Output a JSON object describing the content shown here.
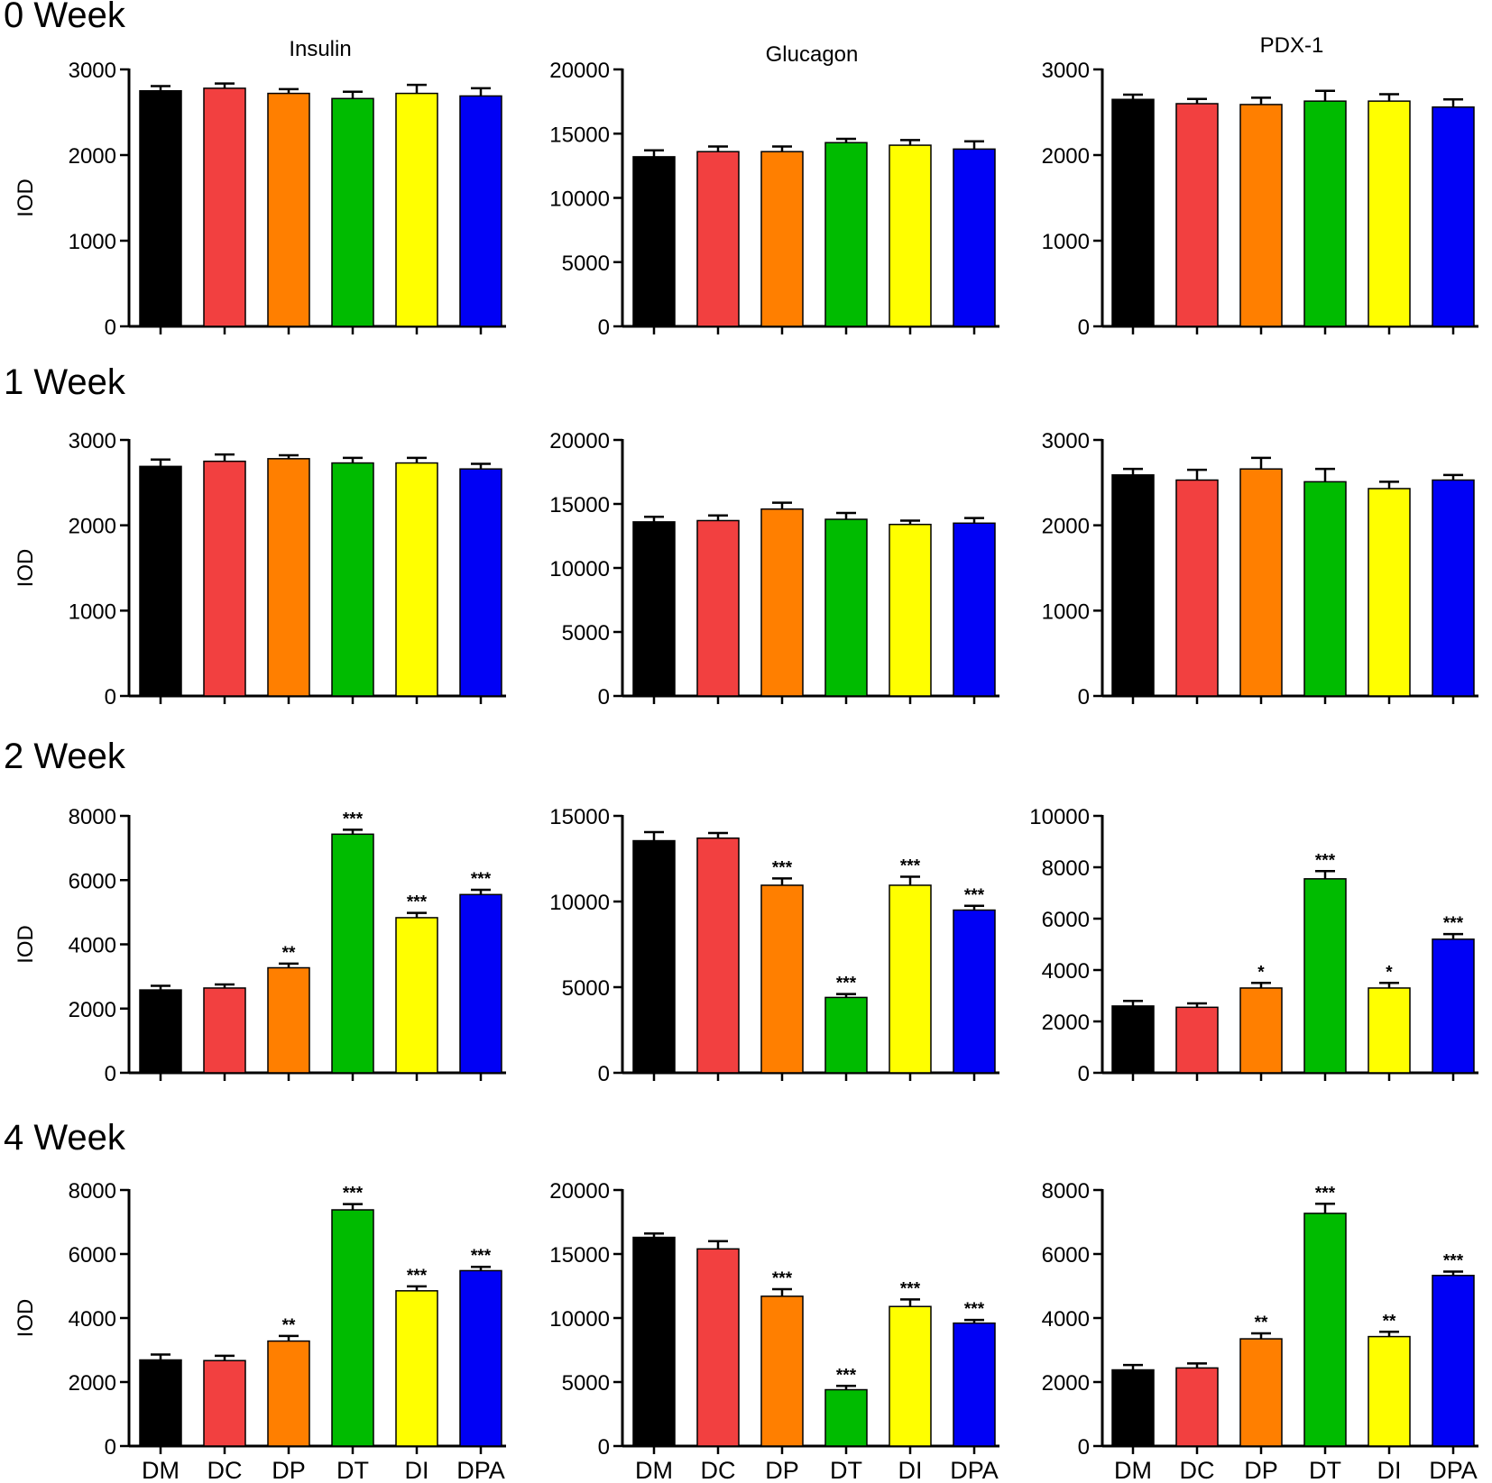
{
  "colors": {
    "DM": "#000000",
    "DC": "#f24040",
    "DP": "#ff7f00",
    "DT": "#00bb00",
    "DI": "#ffff00",
    "DPA": "#0000f5"
  },
  "columns": [
    "Insulin",
    "Glucagon",
    "PDX-1"
  ],
  "rows": [
    "0 Week",
    "1 Week",
    "2 Week",
    "4 Week"
  ],
  "ylabel": "IOD",
  "categories": [
    "DM",
    "DC",
    "DP",
    "DT",
    "DI",
    "DPA"
  ],
  "chart_data": [
    {
      "type": "bar",
      "row": "0 Week",
      "title": "Insulin",
      "ylabel": "IOD",
      "ylim": [
        0,
        3000
      ],
      "yticks": [
        0,
        1000,
        2000,
        3000
      ],
      "categories": [
        "DM",
        "DC",
        "DP",
        "DT",
        "DI",
        "DPA"
      ],
      "values": [
        2750,
        2780,
        2720,
        2660,
        2720,
        2690
      ],
      "errors": [
        55,
        55,
        50,
        80,
        100,
        90
      ],
      "significance": [
        "",
        "",
        "",
        "",
        "",
        ""
      ]
    },
    {
      "type": "bar",
      "row": "0 Week",
      "title": "Glucagon",
      "ylabel": "",
      "ylim": [
        0,
        20000
      ],
      "yticks": [
        0,
        5000,
        10000,
        15000,
        20000
      ],
      "categories": [
        "DM",
        "DC",
        "DP",
        "DT",
        "DI",
        "DPA"
      ],
      "values": [
        13200,
        13600,
        13600,
        14300,
        14100,
        13800
      ],
      "errors": [
        500,
        400,
        400,
        300,
        400,
        600
      ],
      "significance": [
        "",
        "",
        "",
        "",
        "",
        ""
      ]
    },
    {
      "type": "bar",
      "row": "0 Week",
      "title": "PDX-1",
      "ylabel": "",
      "ylim": [
        0,
        3000
      ],
      "yticks": [
        0,
        1000,
        2000,
        3000
      ],
      "categories": [
        "DM",
        "DC",
        "DP",
        "DT",
        "DI",
        "DPA"
      ],
      "values": [
        2650,
        2600,
        2590,
        2630,
        2630,
        2560
      ],
      "errors": [
        55,
        55,
        80,
        120,
        80,
        90
      ],
      "significance": [
        "",
        "",
        "",
        "",
        "",
        ""
      ]
    },
    {
      "type": "bar",
      "row": "1 Week",
      "title": "",
      "ylabel": "IOD",
      "ylim": [
        0,
        3000
      ],
      "yticks": [
        0,
        1000,
        2000,
        3000
      ],
      "categories": [
        "DM",
        "DC",
        "DP",
        "DT",
        "DI",
        "DPA"
      ],
      "values": [
        2690,
        2750,
        2780,
        2730,
        2730,
        2660
      ],
      "errors": [
        80,
        80,
        40,
        60,
        60,
        60
      ],
      "significance": [
        "",
        "",
        "",
        "",
        "",
        ""
      ]
    },
    {
      "type": "bar",
      "row": "1 Week",
      "title": "",
      "ylabel": "",
      "ylim": [
        0,
        20000
      ],
      "yticks": [
        0,
        5000,
        10000,
        15000,
        20000
      ],
      "categories": [
        "DM",
        "DC",
        "DP",
        "DT",
        "DI",
        "DPA"
      ],
      "values": [
        13600,
        13700,
        14600,
        13800,
        13400,
        13500
      ],
      "errors": [
        400,
        400,
        500,
        500,
        300,
        400
      ],
      "significance": [
        "",
        "",
        "",
        "",
        "",
        ""
      ]
    },
    {
      "type": "bar",
      "row": "1 Week",
      "title": "",
      "ylabel": "",
      "ylim": [
        0,
        3000
      ],
      "yticks": [
        0,
        1000,
        2000,
        3000
      ],
      "categories": [
        "DM",
        "DC",
        "DP",
        "DT",
        "DI",
        "DPA"
      ],
      "values": [
        2590,
        2530,
        2660,
        2510,
        2430,
        2530
      ],
      "errors": [
        70,
        120,
        130,
        150,
        80,
        60
      ],
      "significance": [
        "",
        "",
        "",
        "",
        "",
        ""
      ]
    },
    {
      "type": "bar",
      "row": "2 Week",
      "title": "",
      "ylabel": "IOD",
      "ylim": [
        0,
        8000
      ],
      "yticks": [
        0,
        2000,
        4000,
        6000,
        8000
      ],
      "categories": [
        "DM",
        "DC",
        "DP",
        "DT",
        "DI",
        "DPA"
      ],
      "values": [
        2580,
        2640,
        3270,
        7430,
        4830,
        5550
      ],
      "errors": [
        130,
        110,
        130,
        140,
        150,
        150
      ],
      "significance": [
        "",
        "",
        "**",
        "***",
        "***",
        "***"
      ]
    },
    {
      "type": "bar",
      "row": "2 Week",
      "title": "",
      "ylabel": "",
      "ylim": [
        0,
        15000
      ],
      "yticks": [
        0,
        5000,
        10000,
        15000
      ],
      "categories": [
        "DM",
        "DC",
        "DP",
        "DT",
        "DI",
        "DPA"
      ],
      "values": [
        13550,
        13700,
        10950,
        4400,
        10950,
        9500
      ],
      "errors": [
        500,
        300,
        400,
        200,
        500,
        250
      ],
      "significance": [
        "",
        "",
        "***",
        "***",
        "***",
        "***"
      ]
    },
    {
      "type": "bar",
      "row": "2 Week",
      "title": "",
      "ylabel": "",
      "ylim": [
        0,
        10000
      ],
      "yticks": [
        0,
        2000,
        4000,
        6000,
        8000,
        10000
      ],
      "categories": [
        "DM",
        "DC",
        "DP",
        "DT",
        "DI",
        "DPA"
      ],
      "values": [
        2600,
        2550,
        3300,
        7550,
        3300,
        5200
      ],
      "errors": [
        200,
        150,
        200,
        300,
        200,
        200
      ],
      "significance": [
        "",
        "",
        "*",
        "***",
        "*",
        "***"
      ]
    },
    {
      "type": "bar",
      "row": "4 Week",
      "title": "",
      "ylabel": "IOD",
      "ylim": [
        0,
        8000
      ],
      "yticks": [
        0,
        2000,
        4000,
        6000,
        8000
      ],
      "categories": [
        "DM",
        "DC",
        "DP",
        "DT",
        "DI",
        "DPA"
      ],
      "values": [
        2690,
        2670,
        3280,
        7380,
        4850,
        5480
      ],
      "errors": [
        170,
        150,
        160,
        180,
        140,
        120
      ],
      "significance": [
        "",
        "",
        "**",
        "***",
        "***",
        "***"
      ]
    },
    {
      "type": "bar",
      "row": "4 Week",
      "title": "",
      "ylabel": "",
      "ylim": [
        0,
        20000
      ],
      "yticks": [
        0,
        5000,
        10000,
        15000,
        20000
      ],
      "categories": [
        "DM",
        "DC",
        "DP",
        "DT",
        "DI",
        "DPA"
      ],
      "values": [
        16300,
        15400,
        11700,
        4400,
        10900,
        9600
      ],
      "errors": [
        300,
        600,
        550,
        300,
        550,
        250
      ],
      "significance": [
        "",
        "",
        "***",
        "***",
        "***",
        "***"
      ]
    },
    {
      "type": "bar",
      "row": "4 Week",
      "title": "",
      "ylabel": "",
      "ylim": [
        0,
        8000
      ],
      "yticks": [
        0,
        2000,
        4000,
        6000,
        8000
      ],
      "categories": [
        "DM",
        "DC",
        "DP",
        "DT",
        "DI",
        "DPA"
      ],
      "values": [
        2380,
        2440,
        3350,
        7270,
        3420,
        5330
      ],
      "errors": [
        150,
        140,
        170,
        300,
        150,
        120
      ],
      "significance": [
        "",
        "",
        "**",
        "***",
        "**",
        "***"
      ]
    }
  ]
}
